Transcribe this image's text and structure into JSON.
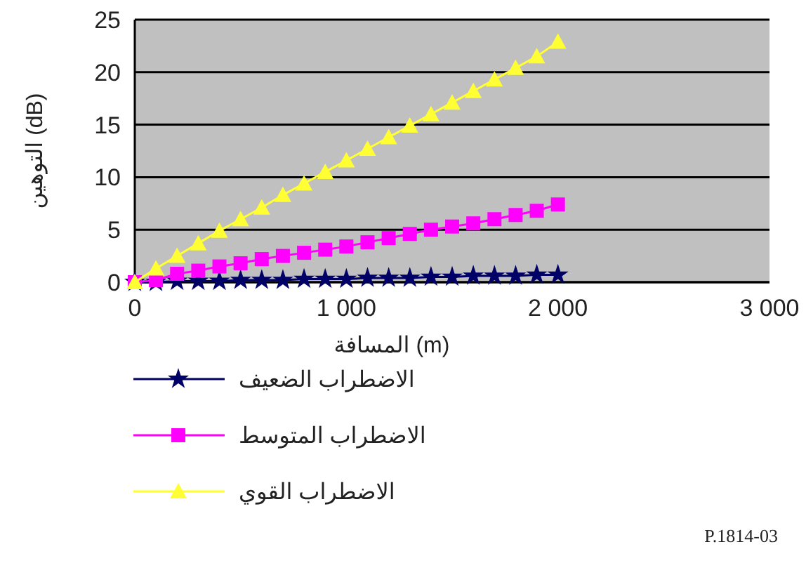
{
  "chart_data": {
    "type": "line",
    "xlabel": "المسافة (m)",
    "ylabel": "التوهين (dB)",
    "x": [
      0,
      100,
      200,
      300,
      400,
      500,
      600,
      700,
      800,
      900,
      1000,
      1100,
      1200,
      1300,
      1400,
      1500,
      1600,
      1700,
      1800,
      1900,
      2000
    ],
    "xlim": [
      0,
      3000
    ],
    "xticks": [
      0,
      {
        "value": 1000,
        "label": "1 000"
      },
      {
        "value": 2000,
        "label": "2 000"
      },
      {
        "value": 3000,
        "label": "3 000"
      }
    ],
    "ylim": [
      0,
      25
    ],
    "yticks": [
      0,
      5,
      10,
      15,
      20,
      25
    ],
    "grid": "y",
    "legend": "bottom left",
    "series": [
      {
        "name": "الاضطراب الضعيف",
        "color": "#000066",
        "marker": "star",
        "values": [
          0,
          0,
          0.1,
          0.1,
          0.1,
          0.2,
          0.2,
          0.2,
          0.3,
          0.3,
          0.3,
          0.4,
          0.4,
          0.4,
          0.5,
          0.5,
          0.6,
          0.6,
          0.6,
          0.7,
          0.7
        ]
      },
      {
        "name": "الاضطراب المتوسط",
        "color": "#ff00ff",
        "marker": "square",
        "values": [
          0,
          0.2,
          0.8,
          1.1,
          1.5,
          1.8,
          2.2,
          2.5,
          2.8,
          3.1,
          3.4,
          3.8,
          4.2,
          4.6,
          5.0,
          5.3,
          5.6,
          6.0,
          6.4,
          6.8,
          7.4
        ]
      },
      {
        "name": "الاضطراب القوي",
        "color": "#ffff33",
        "marker": "triangle",
        "values": [
          0,
          1.3,
          2.5,
          3.7,
          4.9,
          6.0,
          7.1,
          8.3,
          9.4,
          10.5,
          11.6,
          12.7,
          13.8,
          14.9,
          16.0,
          17.1,
          18.2,
          19.3,
          20.4,
          21.5,
          22.9
        ]
      }
    ],
    "annotations": [
      "P.1814-03"
    ]
  }
}
